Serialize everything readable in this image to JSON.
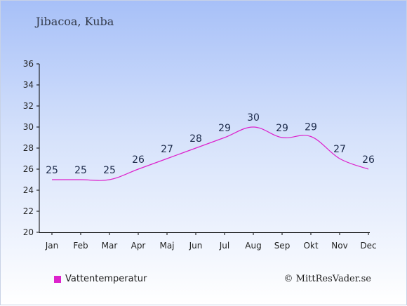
{
  "title": "Jibacoa, Kuba",
  "legend_label": "Vattentemperatur",
  "copyright": "© MittResVader.se",
  "colors": {
    "series": "#dd22cc",
    "axis": "#000000",
    "label": "#1c2a4a"
  },
  "chart_data": {
    "type": "line",
    "categories": [
      "Jan",
      "Feb",
      "Mar",
      "Apr",
      "Maj",
      "Jun",
      "Jul",
      "Aug",
      "Sep",
      "Okt",
      "Nov",
      "Dec"
    ],
    "series": [
      {
        "name": "Vattentemperatur",
        "values": [
          25,
          25,
          25,
          26,
          27,
          28,
          29,
          30,
          29,
          29,
          27,
          26
        ],
        "curve": [
          25,
          25,
          25,
          26,
          27,
          28,
          29,
          30,
          29,
          29.1,
          27,
          26
        ]
      }
    ],
    "ylim": [
      20,
      36
    ],
    "yticks": [
      20,
      22,
      24,
      26,
      28,
      30,
      32,
      34,
      36
    ],
    "grid": false,
    "legend": "bottom-left"
  }
}
